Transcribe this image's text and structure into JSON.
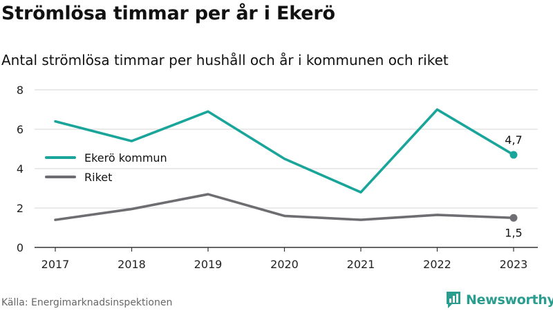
{
  "header": {
    "title": "Strömlösa timmar per år i Ekerö",
    "subtitle": "Antal strömlösa timmar per hushåll och år i kommunen och riket"
  },
  "footer": {
    "source": "Källa: Energimarknadsinspektionen",
    "brand": "Newsworthy",
    "brand_icon": "bar-chart-speech-bubble-icon"
  },
  "colors": {
    "ekero": "#1aa59a",
    "riket": "#6e6d72",
    "grid": "#d6d6d6",
    "axis": "#333333"
  },
  "chart_data": {
    "type": "line",
    "title": "Strömlösa timmar per år i Ekerö",
    "subtitle": "Antal strömlösa timmar per hushåll och år i kommunen och riket",
    "x": [
      "2017",
      "2018",
      "2019",
      "2020",
      "2021",
      "2022",
      "2023"
    ],
    "ylim": [
      0,
      8
    ],
    "yticks": [
      "0",
      "2",
      "4",
      "6",
      "8"
    ],
    "grid": true,
    "legend_position": "left",
    "series": [
      {
        "name": "Ekerö kommun",
        "values": [
          6.4,
          5.4,
          6.9,
          4.5,
          2.8,
          7.0,
          4.7
        ],
        "last_label": "4,7"
      },
      {
        "name": "Riket",
        "values": [
          1.4,
          1.95,
          2.7,
          1.6,
          1.4,
          1.65,
          1.5
        ],
        "last_label": "1,5"
      }
    ]
  }
}
